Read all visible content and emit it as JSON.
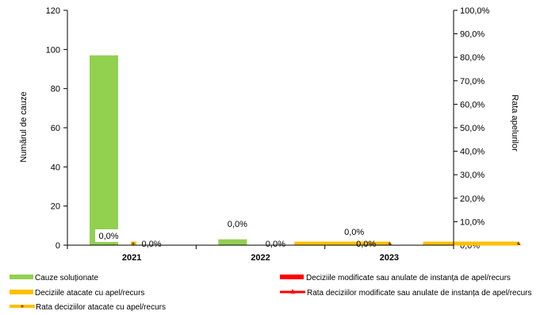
{
  "chart_data": {
    "type": "bar",
    "categories": [
      "2021",
      "2022",
      "2023"
    ],
    "ylabel": "Numărul de cauze",
    "y2label": "Rata apelurilor",
    "ylim": [
      0,
      120
    ],
    "y2lim": [
      0,
      1.0
    ],
    "yticks": [
      "0",
      "20",
      "40",
      "60",
      "80",
      "100",
      "120"
    ],
    "y2ticks": [
      "0,0%",
      "10,0%",
      "20,0%",
      "30,0%",
      "40,0%",
      "50,0%",
      "60,0%",
      "70,0%",
      "80,0%",
      "90,0%",
      "100,0%"
    ],
    "legend_position": "bottom",
    "series": [
      {
        "name": "Cauze soluționate",
        "type": "bar",
        "axis": "left",
        "color": "#92D050",
        "values": [
          97,
          3,
          0
        ]
      },
      {
        "name": "Deciziile modificate sau anulate de instanța de apel/recurs",
        "type": "bar",
        "axis": "left",
        "color": "#FF0000",
        "values": [
          0,
          0,
          0
        ]
      },
      {
        "name": "Deciziile atacate cu apel/recurs",
        "type": "bar",
        "axis": "left",
        "color": "#FFC000",
        "values": [
          0,
          0,
          0
        ]
      },
      {
        "name": "Rata deciziilor modificate sau anulate de instanța de apel/recurs",
        "type": "line",
        "axis": "right",
        "color": "#FF0000",
        "values": [
          0,
          0,
          0
        ]
      },
      {
        "name": "Rata deciziilor atacate cu apel/recurs",
        "type": "line",
        "axis": "right",
        "color": "#FFC000",
        "values": [
          0,
          0,
          0
        ]
      }
    ],
    "data_labels": [
      {
        "text": "0,0%",
        "category": 0
      },
      {
        "text": "0,0%",
        "category": 0
      },
      {
        "text": "0,0%",
        "category": 1
      },
      {
        "text": "0,0%",
        "category": 1
      },
      {
        "text": "0,0%",
        "category": 2
      },
      {
        "text": "0,0%",
        "category": 2
      }
    ]
  }
}
